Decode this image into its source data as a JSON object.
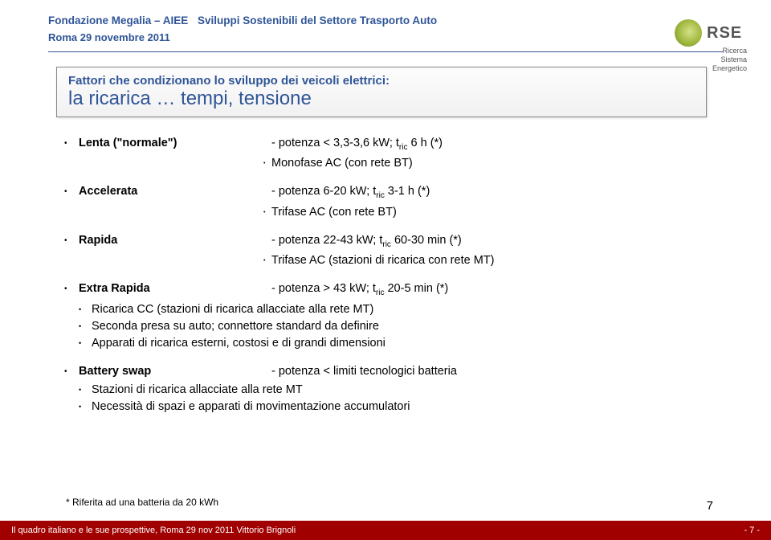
{
  "header": {
    "org": "Fondazione Megalia – AIEE",
    "title": "Sviluppi Sostenibili del Settore Trasporto Auto",
    "dateline": "Roma  29 novembre 2011"
  },
  "logo": {
    "acronym": "RSE",
    "sub1": "Ricerca",
    "sub2": "Sistema",
    "sub3": "Energetico"
  },
  "titlebox": {
    "line1": "Fattori che condizionano lo sviluppo dei veicoli elettrici:",
    "line2": "la ricarica … tempi, tensione"
  },
  "modes": {
    "lenta": {
      "label": "Lenta (\"normale\")",
      "value": "- potenza < 3,3-3,6 kW; t",
      "value_sub": "ric",
      "value_tail": " 6 h (*)",
      "sub": "Monofase  AC (con rete BT)"
    },
    "accelerata": {
      "label": "Accelerata",
      "value": "- potenza 6-20 kW; t",
      "value_sub": "ric",
      "value_tail": " 3-1 h (*)",
      "sub": "Trifase  AC (con rete BT)"
    },
    "rapida": {
      "label": "Rapida",
      "value": "- potenza 22-43 kW; t",
      "value_sub": "ric",
      "value_tail": " 60-30 min (*)",
      "sub": "Trifase  AC (stazioni di ricarica con rete MT)"
    },
    "extra": {
      "label": "Extra Rapida",
      "value": "- potenza > 43 kW; t",
      "value_sub": "ric",
      "value_tail": " 20-5 min (*)",
      "b1": "Ricarica CC (stazioni di ricarica allacciate alla rete MT)",
      "b2": "Seconda presa su auto; connettore standard da definire",
      "b3": "Apparati di ricarica esterni, costosi e di grandi dimensioni"
    },
    "swap": {
      "label": "Battery swap",
      "value": "- potenza < limiti tecnologici batteria",
      "b1": "Stazioni di ricarica allacciate alla rete MT",
      "b2": "Necessità di spazi e apparati di movimentazione accumulatori"
    }
  },
  "footnote": "* Riferita ad una batteria da 20 kWh",
  "footer": {
    "left": "Il quadro italiano e le sue prospettive, Roma 29 nov 2011 Vittorio Brignoli",
    "right": "- 7 -"
  },
  "pagenum": "7",
  "colors": {
    "brand_blue": "#2f5597",
    "footer_red": "#a00000"
  }
}
